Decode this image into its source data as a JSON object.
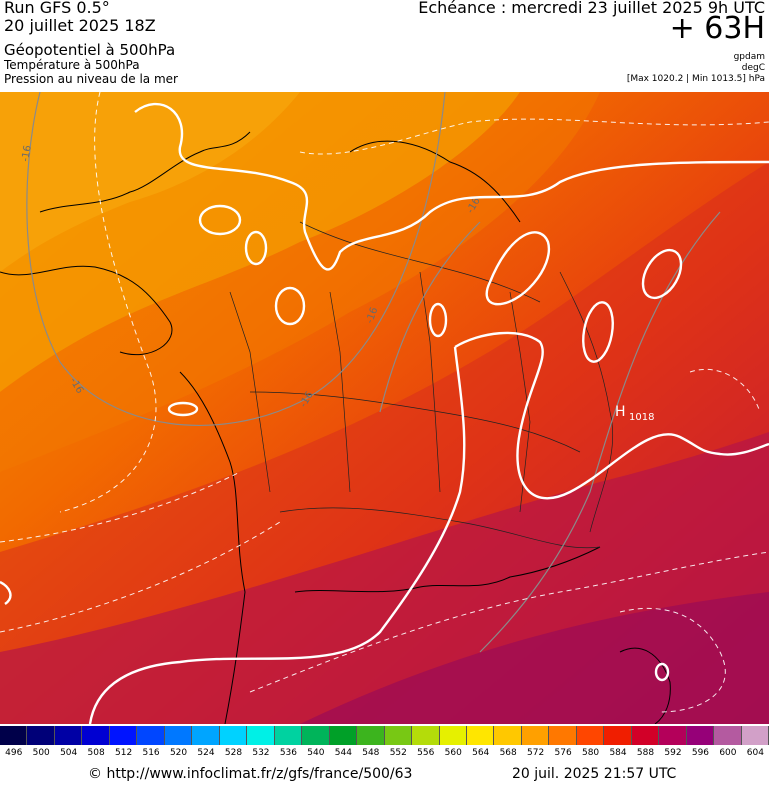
{
  "header": {
    "run_title": "Run GFS 0.5°",
    "run_date": "20 juillet 2025 18Z",
    "param_1": "Géopotentiel à 500hPa",
    "param_2": "Température à 500hPa",
    "param_3": "Pression au niveau de la mer",
    "echeance": "Echéance : mercredi 23 juillet 2025 9h UTC",
    "offset": "+ 63H",
    "unit_1": "gpdam",
    "unit_2": "degC",
    "minmax": "[Max 1020.2 | Min 1013.5] hPa"
  },
  "map": {
    "high_marker": "H",
    "high_value": "1018",
    "temp_labels": [
      "-16",
      "-16",
      "-16",
      "-16",
      "-16"
    ]
  },
  "colorbar": {
    "labels": [
      "496",
      "500",
      "504",
      "508",
      "512",
      "516",
      "520",
      "524",
      "528",
      "532",
      "536",
      "540",
      "544",
      "548",
      "552",
      "556",
      "560",
      "564",
      "568",
      "572",
      "576",
      "580",
      "584",
      "588",
      "592",
      "596",
      "600",
      "604"
    ],
    "colors": [
      "#00004a",
      "#000078",
      "#0000a5",
      "#0000d2",
      "#0014ff",
      "#0046ff",
      "#0078ff",
      "#00a5ff",
      "#00d2ff",
      "#00f0e6",
      "#00d2a0",
      "#00b45a",
      "#00a028",
      "#3cb41e",
      "#78c814",
      "#b4dc0a",
      "#e6f000",
      "#ffe600",
      "#ffc800",
      "#ffa000",
      "#ff7800",
      "#ff4600",
      "#f01e00",
      "#d20028",
      "#b4005a",
      "#960078",
      "#b45aa0",
      "#d2a0c8"
    ]
  },
  "footer": {
    "url": "© http://www.infoclimat.fr/z/gfs/france/500/63",
    "timestamp": "20 juil. 2025 21:57 UTC"
  }
}
